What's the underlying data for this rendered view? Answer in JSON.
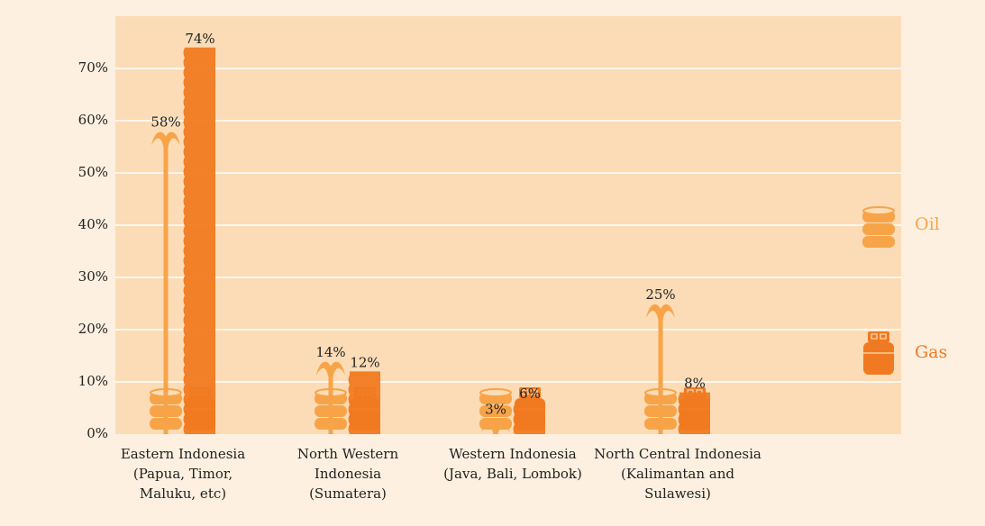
{
  "chart_data": {
    "type": "pictorial-bar",
    "categories": [
      [
        "Eastern Indonesia",
        "(Papua, Timor,",
        "Maluku, etc)"
      ],
      [
        "North Western",
        "Indonesia",
        "(Sumatera)"
      ],
      [
        "Western Indonesia",
        "(Java, Bali, Lombok)"
      ],
      [
        "North Central Indonesia",
        "(Kalimantan and",
        "Sulawesi)"
      ]
    ],
    "series": [
      {
        "name": "Oil",
        "color": "#f7a449",
        "values": [
          58,
          14,
          3,
          25
        ],
        "value_labels": [
          "58%",
          "14%",
          "3%",
          "25%"
        ]
      },
      {
        "name": "Gas",
        "color": "#f07a21",
        "values": [
          74,
          12,
          6,
          8
        ],
        "value_labels": [
          "74%",
          "12%",
          "6%",
          "8%"
        ]
      }
    ],
    "ylim": [
      0,
      80
    ],
    "yticks": [
      {
        "value": 0,
        "label": "0%"
      },
      {
        "value": 10,
        "label": "10%"
      },
      {
        "value": 20,
        "label": "20%"
      },
      {
        "value": 30,
        "label": "30%"
      },
      {
        "value": 40,
        "label": "40%"
      },
      {
        "value": 50,
        "label": "50%"
      },
      {
        "value": 60,
        "label": "60%"
      },
      {
        "value": 70,
        "label": "70%"
      }
    ],
    "grid": true
  }
}
